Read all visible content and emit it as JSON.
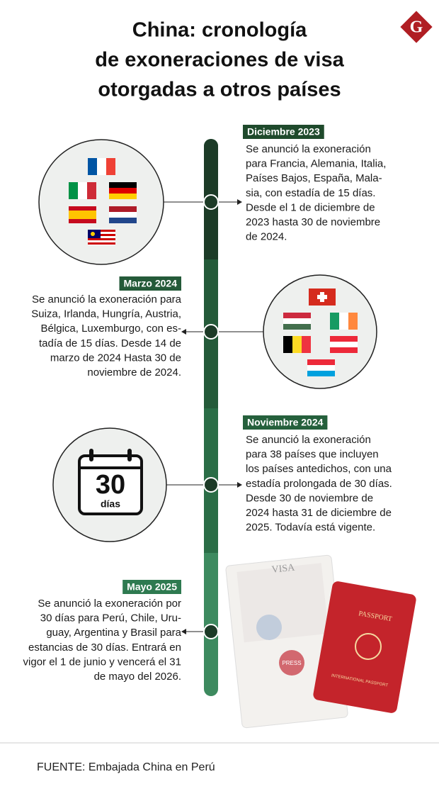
{
  "header": {
    "title_lines": [
      "China: cronología",
      "de exoneraciones de visa",
      "otorgadas a otros países"
    ],
    "logo": "G"
  },
  "events": [
    {
      "date": "Diciembre 2023",
      "lines": [
        "Se anunció la exoneración",
        "para Francia, Alemania, Italia,",
        "Países Bajos, España, Mala-",
        "sia, con estadía de 15 días.",
        "Desde el 1 de diciembre de",
        "2023 hasta 30 de noviembre",
        "de 2024."
      ]
    },
    {
      "date": "Marzo 2024",
      "lines": [
        "Se anunció la exoneración para",
        "Suiza, Irlanda, Hungría, Austria,",
        "Bélgica, Luxemburgo, con es-",
        "tadía de 15 días.  Desde 14 de",
        "marzo de 2024 Hasta 30 de",
        "noviembre de 2024."
      ]
    },
    {
      "date": "Noviembre 2024",
      "lines": [
        "Se anunció la exoneración",
        "para 38 países que incluyen",
        "los países antedichos, con una",
        "estadía prolongada de 30 días.",
        "Desde 30 de noviembre de",
        "2024 hasta 31 de diciembre de",
        "2025. Todavía está vigente."
      ]
    },
    {
      "date": "Mayo 2025",
      "lines": [
        "Se anunció la exoneración por",
        "30 días para Perú, Chile, Uru-",
        "guay, Argentina y Brasil para",
        "estancias de 30 días. Entrará en",
        "vigor el 1 de junio y vencerá el 31",
        "de mayo del 2026."
      ]
    }
  ],
  "calendar": {
    "number": "30",
    "unit": "días"
  },
  "passport": {
    "visa": "VISA",
    "cover": "PASSPORT",
    "cover_sub": "INTERNATIONAL PASSPORT",
    "stamp": "PRESS"
  },
  "footer": {
    "source": "FUENTE: Embajada China en Perú"
  }
}
